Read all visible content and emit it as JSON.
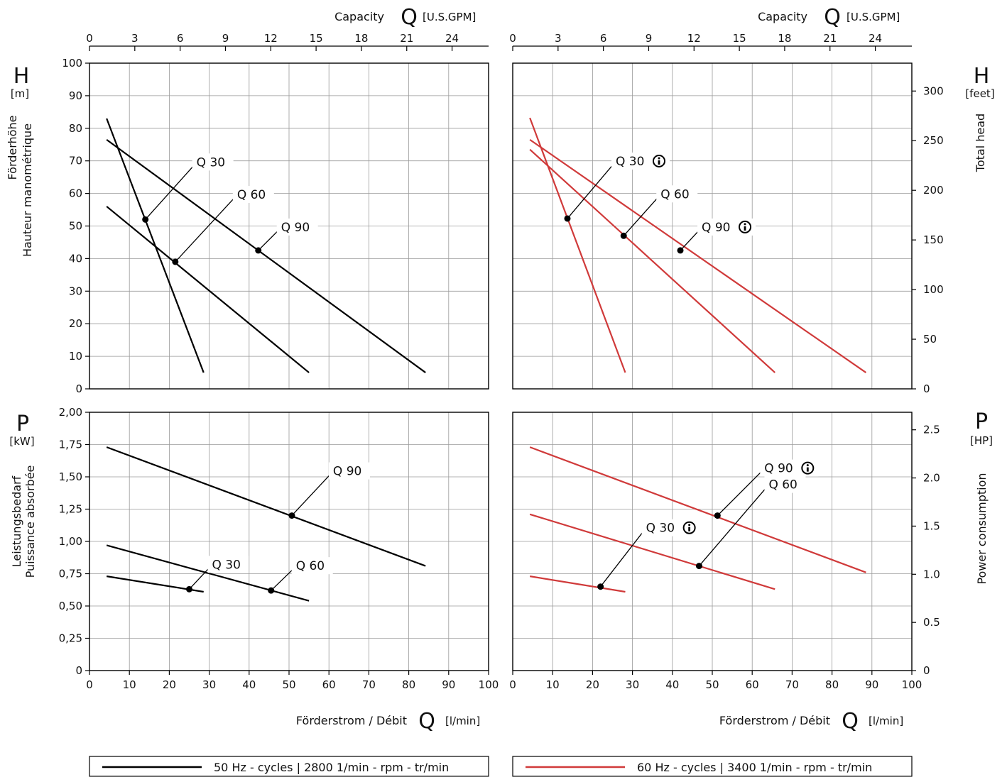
{
  "top_axis": {
    "left": {
      "prefix": "Capacity",
      "symbol": "Q",
      "unit": "[U.S.GPM]"
    },
    "right": {
      "prefix": "Capacity",
      "symbol": "Q",
      "unit": "[U.S.GPM]"
    },
    "ticks": [
      "0",
      "3",
      "6",
      "9",
      "12",
      "15",
      "18",
      "21",
      "24"
    ]
  },
  "bottom_axis": {
    "left": {
      "prefix": "Förderstrom / Débit",
      "symbol": "Q",
      "unit": "[l/min]"
    },
    "right": {
      "prefix": "Förderstrom / Débit",
      "symbol": "Q",
      "unit": "[l/min]"
    },
    "ticks": [
      "0",
      "10",
      "20",
      "30",
      "40",
      "50",
      "60",
      "70",
      "80",
      "90",
      "100"
    ]
  },
  "head_left": {
    "symbol": "H",
    "unit": "[m]",
    "label1": "Förderhöhe",
    "label2": "Hauteur manométrique",
    "ticks": [
      "0",
      "10",
      "20",
      "30",
      "40",
      "50",
      "60",
      "70",
      "80",
      "90",
      "100"
    ]
  },
  "head_right": {
    "symbol": "H",
    "unit": "[feet]",
    "label": "Total head",
    "ticks": [
      "0",
      "50",
      "100",
      "150",
      "200",
      "250",
      "300"
    ]
  },
  "power_left": {
    "symbol": "P",
    "unit": "[kW]",
    "label1": "Leistungsbedarf",
    "label2": "Puissance absorbée",
    "ticks": [
      "0",
      "0,25",
      "0,50",
      "0,75",
      "1,00",
      "1,25",
      "1,50",
      "1,75",
      "2,00"
    ]
  },
  "power_right": {
    "symbol": "P",
    "unit": "[HP]",
    "label": "Power consumption",
    "ticks": [
      "0",
      "0.5",
      "1.0",
      "1.5",
      "2.0",
      "2.5"
    ]
  },
  "legend": {
    "hz50": "50 Hz - cycles | 2800 1/min - rpm - tr/min",
    "hz60": "60 Hz - cycles | 3400 1/min - rpm - tr/min"
  },
  "colors": {
    "hz50": "#000000",
    "hz60": "#d03a3a",
    "grid": "#9a9a9a"
  },
  "chart_data": [
    {
      "type": "line",
      "panel": "head-50hz",
      "xlabel": "Förderstrom / Débit Q [l/min]",
      "ylabel": "Förderhöhe / Hauteur manométrique H [m]",
      "xlim": [
        0,
        100
      ],
      "ylim": [
        0,
        100
      ],
      "series": [
        {
          "name": "Q 30",
          "x": [
            4.3,
            28.6
          ],
          "y": [
            83,
            5
          ],
          "marker": [
            14,
            52
          ]
        },
        {
          "name": "Q 60",
          "x": [
            4.3,
            55
          ],
          "y": [
            56,
            5
          ],
          "marker": [
            21.5,
            39
          ]
        },
        {
          "name": "Q 90",
          "x": [
            4.3,
            84.2
          ],
          "y": [
            76.5,
            5
          ],
          "marker": [
            42.3,
            42.5
          ]
        }
      ]
    },
    {
      "type": "line",
      "panel": "head-60hz",
      "xlabel": "Förderstrom / Débit Q [l/min]",
      "ylabel": "Total head H [feet]",
      "xlim": [
        0,
        100
      ],
      "ylim": [
        0,
        100
      ],
      "series": [
        {
          "name": "Q 30",
          "x": [
            4.3,
            28.2
          ],
          "y": [
            83.2,
            5
          ],
          "marker": [
            13.7,
            52.3
          ],
          "info": true
        },
        {
          "name": "Q 60",
          "x": [
            4.3,
            65.7
          ],
          "y": [
            73.5,
            5
          ],
          "marker": [
            27.8,
            47
          ],
          "info": false
        },
        {
          "name": "Q 90",
          "x": [
            4.3,
            88.5
          ],
          "y": [
            76.5,
            5
          ],
          "marker": [
            42,
            42.5
          ],
          "info": true
        }
      ]
    },
    {
      "type": "line",
      "panel": "power-50hz",
      "xlabel": "Förderstrom / Débit Q [l/min]",
      "ylabel": "Leistungsbedarf / Puissance absorbée P [kW]",
      "xlim": [
        0,
        100
      ],
      "ylim": [
        0,
        2.0
      ],
      "series": [
        {
          "name": "Q 30",
          "x": [
            4.3,
            28.6
          ],
          "y": [
            0.73,
            0.61
          ],
          "marker": [
            25,
            0.63
          ]
        },
        {
          "name": "Q 60",
          "x": [
            4.3,
            55
          ],
          "y": [
            0.97,
            0.54
          ],
          "marker": [
            45.5,
            0.62
          ]
        },
        {
          "name": "Q 90",
          "x": [
            4.3,
            84.2
          ],
          "y": [
            1.73,
            0.81
          ],
          "marker": [
            50.7,
            1.2
          ]
        }
      ]
    },
    {
      "type": "line",
      "panel": "power-60hz",
      "xlabel": "Förderstrom / Débit Q [l/min]",
      "ylabel": "Power consumption P [HP]",
      "xlim": [
        0,
        100
      ],
      "ylim": [
        0,
        2.0
      ],
      "series": [
        {
          "name": "Q 30",
          "x": [
            4.3,
            28.2
          ],
          "y": [
            0.73,
            0.61
          ],
          "marker": [
            22,
            0.65
          ],
          "info": true
        },
        {
          "name": "Q 60",
          "x": [
            4.3,
            65.7
          ],
          "y": [
            1.21,
            0.63
          ],
          "marker": [
            46.7,
            0.81
          ],
          "info": false
        },
        {
          "name": "Q 90",
          "x": [
            4.3,
            88.5
          ],
          "y": [
            1.73,
            0.76
          ],
          "marker": [
            51.3,
            1.2
          ],
          "info": true
        }
      ]
    }
  ]
}
